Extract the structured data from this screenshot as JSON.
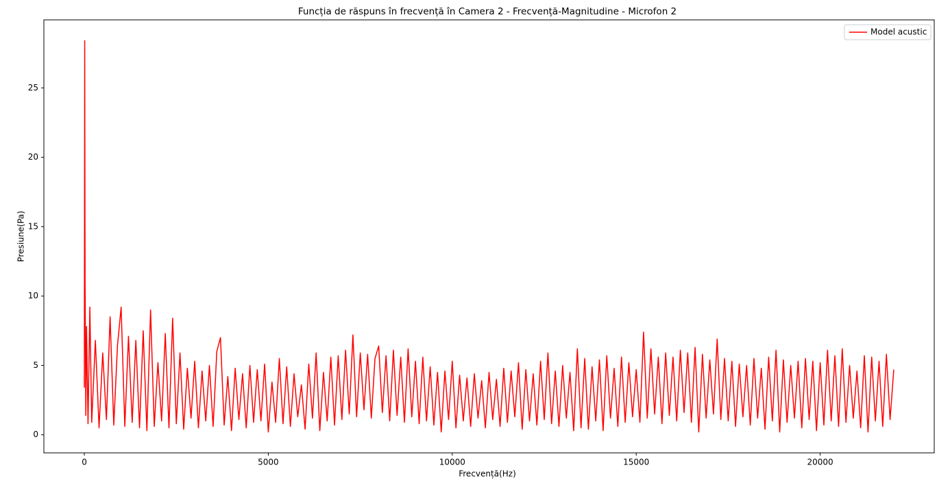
{
  "chart_data": {
    "type": "line",
    "title": "Funcția de răspuns în frecvență în Camera 2 - Frecvență-Magnitudine - Microfon 2",
    "xlabel": "Frecvență(Hz)",
    "ylabel": "Presiune(Pa)",
    "legend": "upper right",
    "xlim": [
      -1100,
      23100
    ],
    "ylim": [
      -1.3,
      29.9
    ],
    "xticks": [
      0,
      5000,
      10000,
      15000,
      20000
    ],
    "yticks": [
      0,
      5,
      10,
      15,
      20,
      25
    ],
    "x": [
      0,
      10,
      20,
      40,
      60,
      100,
      150,
      200,
      300,
      400,
      500,
      600,
      700,
      800,
      900,
      1000,
      1100,
      1200,
      1300,
      1400,
      1500,
      1600,
      1700,
      1800,
      1900,
      2000,
      2100,
      2200,
      2300,
      2400,
      2500,
      2600,
      2700,
      2800,
      2900,
      3000,
      3100,
      3200,
      3300,
      3400,
      3500,
      3600,
      3700,
      3800,
      3900,
      4000,
      4100,
      4200,
      4300,
      4400,
      4500,
      4600,
      4700,
      4800,
      4900,
      5000,
      5100,
      5200,
      5300,
      5400,
      5500,
      5600,
      5700,
      5800,
      5900,
      6000,
      6100,
      6200,
      6300,
      6400,
      6500,
      6600,
      6700,
      6800,
      6900,
      7000,
      7100,
      7200,
      7300,
      7400,
      7500,
      7600,
      7700,
      7800,
      7900,
      8000,
      8100,
      8200,
      8300,
      8400,
      8500,
      8600,
      8700,
      8800,
      8900,
      9000,
      9100,
      9200,
      9300,
      9400,
      9500,
      9600,
      9700,
      9800,
      9900,
      10000,
      10100,
      10200,
      10300,
      10400,
      10500,
      10600,
      10700,
      10800,
      10900,
      11000,
      11100,
      11200,
      11300,
      11400,
      11500,
      11600,
      11700,
      11800,
      11900,
      12000,
      12100,
      12200,
      12300,
      12400,
      12500,
      12600,
      12700,
      12800,
      12900,
      13000,
      13100,
      13200,
      13300,
      13400,
      13500,
      13600,
      13700,
      13800,
      13900,
      14000,
      14100,
      14200,
      14300,
      14400,
      14500,
      14600,
      14700,
      14800,
      14900,
      15000,
      15100,
      15200,
      15300,
      15400,
      15500,
      15600,
      15700,
      15800,
      15900,
      16000,
      16100,
      16200,
      16300,
      16400,
      16500,
      16600,
      16700,
      16800,
      16900,
      17000,
      17100,
      17200,
      17300,
      17400,
      17500,
      17600,
      17700,
      17800,
      17900,
      18000,
      18100,
      18200,
      18300,
      18400,
      18500,
      18600,
      18700,
      18800,
      18900,
      19000,
      19100,
      19200,
      19300,
      19400,
      19500,
      19600,
      19700,
      19800,
      19900,
      20000,
      20100,
      20200,
      20300,
      20400,
      20500,
      20600,
      20700,
      20800,
      20900,
      21000,
      21100,
      21200,
      21300,
      21400,
      21500,
      21600,
      21700,
      21800,
      21900,
      22000
    ],
    "series": [
      {
        "name": "Model acustic",
        "color": "#ff0000",
        "values": [
          3.4,
          28.4,
          11.2,
          1.4,
          7.8,
          0.8,
          9.2,
          0.9,
          6.8,
          0.5,
          5.9,
          1.1,
          8.5,
          0.7,
          6.4,
          9.2,
          0.6,
          7.1,
          0.9,
          6.8,
          0.5,
          7.5,
          0.3,
          9.0,
          0.6,
          5.2,
          1.0,
          7.3,
          0.5,
          8.4,
          0.8,
          5.9,
          0.4,
          4.8,
          1.2,
          5.3,
          0.5,
          4.6,
          1.0,
          5.0,
          0.6,
          6.0,
          7.0,
          0.7,
          4.2,
          0.3,
          4.8,
          1.1,
          4.4,
          0.5,
          5.0,
          0.9,
          4.7,
          1.0,
          5.1,
          0.2,
          3.8,
          0.9,
          5.5,
          0.8,
          4.9,
          0.6,
          4.4,
          1.3,
          3.6,
          0.4,
          5.1,
          1.2,
          5.9,
          0.3,
          4.5,
          1.0,
          5.6,
          0.7,
          5.7,
          1.1,
          6.1,
          1.5,
          7.2,
          1.3,
          5.9,
          1.8,
          5.8,
          1.2,
          5.5,
          6.4,
          1.6,
          5.7,
          1.0,
          6.1,
          1.4,
          5.6,
          0.9,
          6.2,
          1.3,
          5.3,
          0.8,
          5.6,
          1.0,
          4.9,
          0.7,
          4.5,
          0.2,
          4.6,
          1.1,
          5.3,
          0.5,
          4.3,
          1.0,
          4.1,
          0.6,
          4.4,
          1.2,
          3.9,
          0.5,
          4.5,
          1.1,
          4.0,
          0.6,
          4.8,
          0.9,
          4.6,
          1.3,
          5.2,
          0.4,
          4.7,
          1.0,
          4.4,
          0.7,
          5.3,
          1.1,
          5.9,
          0.8,
          4.6,
          0.6,
          5.0,
          1.2,
          4.5,
          0.3,
          6.2,
          0.5,
          5.5,
          0.4,
          4.9,
          1.0,
          5.4,
          0.3,
          5.7,
          1.2,
          4.8,
          0.6,
          5.6,
          0.9,
          5.2,
          1.3,
          4.7,
          0.9,
          7.4,
          1.2,
          6.2,
          1.5,
          5.6,
          0.8,
          5.9,
          1.4,
          5.6,
          1.0,
          6.1,
          1.6,
          5.9,
          0.9,
          6.3,
          0.2,
          5.8,
          1.2,
          5.4,
          1.5,
          6.9,
          1.1,
          5.5,
          1.0,
          5.3,
          0.6,
          5.1,
          1.3,
          5.0,
          0.7,
          5.5,
          1.2,
          4.8,
          0.4,
          5.6,
          1.0,
          6.1,
          0.2,
          5.4,
          0.9,
          5.0,
          1.2,
          5.3,
          0.5,
          5.5,
          1.1,
          5.3,
          0.3,
          5.2,
          0.7,
          6.1,
          1.0,
          5.7,
          0.6,
          6.2,
          0.9,
          5.0,
          1.2,
          4.6,
          0.5,
          5.7,
          0.2,
          5.6,
          1.0,
          5.3,
          0.6,
          5.8,
          1.1,
          4.7
        ]
      }
    ]
  }
}
